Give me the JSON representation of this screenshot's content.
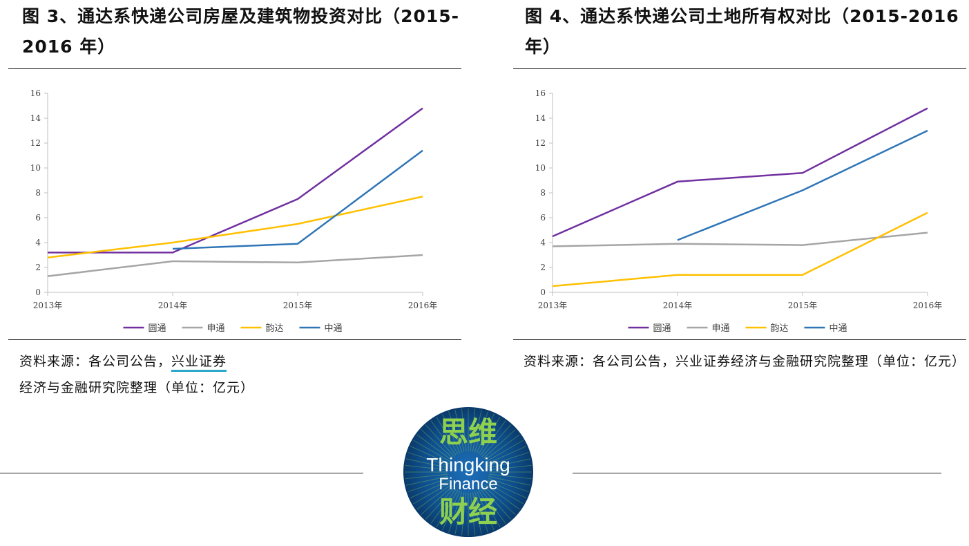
{
  "left": {
    "title": "图 3、通达系快递公司房屋及建筑物投资对比（2015-2016 年）",
    "source_prefix": "资料来源：各公司公告，",
    "source_link": "兴业证券",
    "source_suffix": "经济与金融研究院整理（单位：亿元）"
  },
  "right": {
    "title": "图 4、通达系快递公司土地所有权对比（2015-2016 年）",
    "source": "资料来源：各公司公告，兴业证券经济与金融研究院整理（单位：亿元）"
  },
  "logo": {
    "top_text": "思维",
    "mid_text_1": "Thingking",
    "mid_text_2": "Finance",
    "bottom_text": "财经"
  },
  "chart_data": [
    {
      "type": "line",
      "title": "通达系快递公司房屋及建筑物投资对比（2015-2016 年）",
      "xlabel": "",
      "ylabel": "",
      "categories": [
        "2013年",
        "2014年",
        "2015年",
        "2016年"
      ],
      "ylim": [
        0,
        16
      ],
      "yticks": [
        0,
        2,
        4,
        6,
        8,
        10,
        12,
        14,
        16
      ],
      "legend_position": "bottom",
      "series": [
        {
          "name": "圆通",
          "color": "#7030a0",
          "values": [
            3.2,
            3.2,
            7.5,
            14.8
          ]
        },
        {
          "name": "申通",
          "color": "#a5a5a5",
          "values": [
            1.3,
            2.5,
            2.4,
            3.0
          ]
        },
        {
          "name": "韵达",
          "color": "#ffc000",
          "values": [
            2.8,
            4.0,
            5.5,
            7.7
          ]
        },
        {
          "name": "中通",
          "color": "#2e75b6",
          "values": [
            null,
            3.5,
            3.9,
            11.4
          ]
        }
      ]
    },
    {
      "type": "line",
      "title": "通达系快递公司土地所有权对比（2015-2016 年）",
      "xlabel": "",
      "ylabel": "",
      "categories": [
        "2013年",
        "2014年",
        "2015年",
        "2016年"
      ],
      "ylim": [
        0,
        16
      ],
      "yticks": [
        0,
        2,
        4,
        6,
        8,
        10,
        12,
        14,
        16
      ],
      "legend_position": "bottom",
      "series": [
        {
          "name": "圆通",
          "color": "#7030a0",
          "values": [
            4.5,
            8.9,
            9.6,
            14.8
          ]
        },
        {
          "name": "申通",
          "color": "#a5a5a5",
          "values": [
            3.7,
            3.9,
            3.8,
            4.8
          ]
        },
        {
          "name": "韵达",
          "color": "#ffc000",
          "values": [
            0.5,
            1.4,
            1.4,
            6.4
          ]
        },
        {
          "name": "中通",
          "color": "#2e75b6",
          "values": [
            null,
            4.2,
            8.2,
            13.0
          ]
        }
      ]
    }
  ]
}
